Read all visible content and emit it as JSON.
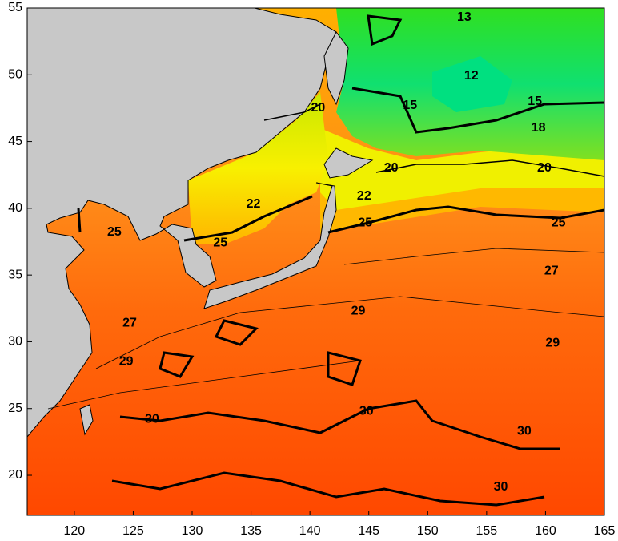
{
  "map": {
    "xlim": [
      116,
      165
    ],
    "ylim": [
      17,
      55
    ],
    "xticks": [
      120,
      125,
      130,
      135,
      140,
      145,
      150,
      155,
      160,
      165
    ],
    "yticks": [
      20,
      25,
      30,
      35,
      40,
      45,
      50,
      55
    ],
    "contour_labels": [
      {
        "value": 13,
        "lon": 153.1,
        "lat": 54.3
      },
      {
        "value": 12,
        "lon": 153.7,
        "lat": 49.9
      },
      {
        "value": 15,
        "lon": 148.5,
        "lat": 47.7
      },
      {
        "value": 15,
        "lon": 159.1,
        "lat": 48.0
      },
      {
        "value": 18,
        "lon": 159.4,
        "lat": 46.0
      },
      {
        "value": 20,
        "lon": 140.7,
        "lat": 47.5
      },
      {
        "value": 20,
        "lon": 146.9,
        "lat": 43.0
      },
      {
        "value": 20,
        "lon": 159.9,
        "lat": 43.0
      },
      {
        "value": 22,
        "lon": 135.2,
        "lat": 40.3
      },
      {
        "value": 22,
        "lon": 144.6,
        "lat": 40.9
      },
      {
        "value": 25,
        "lon": 123.4,
        "lat": 38.2
      },
      {
        "value": 25,
        "lon": 132.4,
        "lat": 37.4
      },
      {
        "value": 25,
        "lon": 144.7,
        "lat": 38.9
      },
      {
        "value": 25,
        "lon": 161.1,
        "lat": 38.9
      },
      {
        "value": 27,
        "lon": 160.5,
        "lat": 35.3
      },
      {
        "value": 27,
        "lon": 124.7,
        "lat": 31.4
      },
      {
        "value": 29,
        "lon": 144.1,
        "lat": 32.3
      },
      {
        "value": 29,
        "lon": 160.6,
        "lat": 29.9
      },
      {
        "value": 29,
        "lon": 124.4,
        "lat": 28.5
      },
      {
        "value": 30,
        "lon": 126.6,
        "lat": 24.2
      },
      {
        "value": 30,
        "lon": 144.8,
        "lat": 24.8
      },
      {
        "value": 30,
        "lon": 158.2,
        "lat": 23.3
      },
      {
        "value": 30,
        "lon": 156.2,
        "lat": 19.1
      }
    ]
  }
}
